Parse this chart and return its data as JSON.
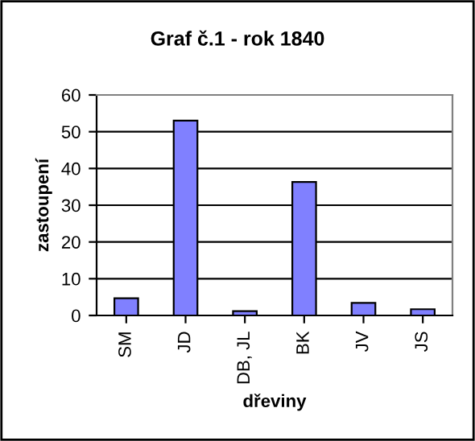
{
  "chart_data": {
    "type": "bar",
    "title": "Graf č.1 - rok 1840",
    "xlabel": "dřeviny",
    "ylabel": "zastoupení",
    "categories": [
      "SM",
      "JD",
      "DB, JL",
      "BK",
      "JV",
      "JS"
    ],
    "values": [
      4.7,
      53,
      1.2,
      36.3,
      3.4,
      1.7
    ],
    "color": "#8080ff",
    "ylim": [
      0,
      60
    ],
    "yticks": [
      0,
      10,
      20,
      30,
      40,
      50,
      60
    ],
    "grid": "y",
    "legend": false
  }
}
